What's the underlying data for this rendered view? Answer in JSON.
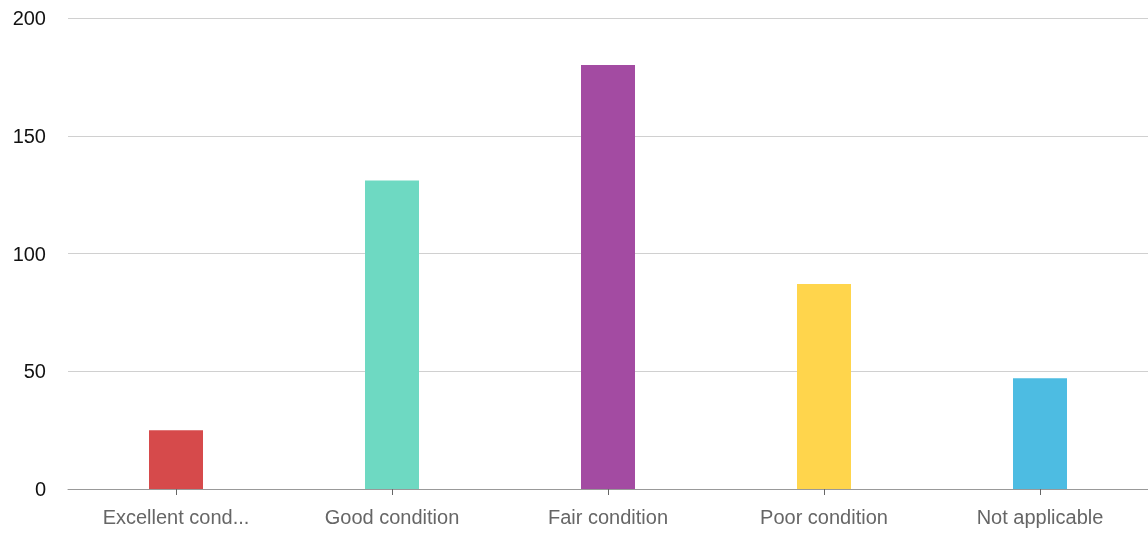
{
  "chart_data": {
    "type": "bar",
    "categories": [
      "Excellent cond...",
      "Good condition",
      "Fair condition",
      "Poor condition",
      "Not applicable"
    ],
    "values": [
      25,
      131,
      180,
      87,
      47
    ],
    "colors": [
      "#d64a4b",
      "#6ed9c2",
      "#a34ba2",
      "#ffd54c",
      "#4dbce2"
    ],
    "ylim": [
      0,
      200
    ],
    "yticks": [
      0,
      50,
      100,
      150,
      200
    ],
    "grid": "y"
  }
}
